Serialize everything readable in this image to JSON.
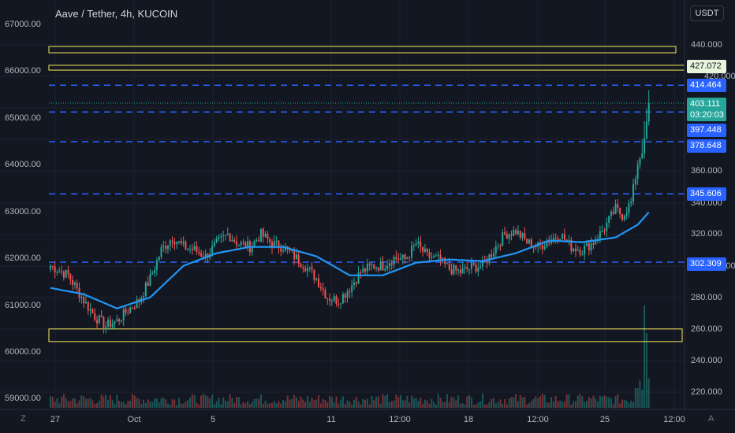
{
  "header": {
    "title": "Aave / Tether, 4h, KUCOIN",
    "currency": "USDT"
  },
  "colors": {
    "background": "#131722",
    "up": "#26a69a",
    "down": "#ef5350",
    "ma_line": "#2196f3",
    "level_line": "#2962ff",
    "zone_line": "#f7e85a"
  },
  "left_axis": {
    "ticks": [
      "67000.00",
      "66000.00",
      "65000.00",
      "64000.00",
      "63000.00",
      "62000.00",
      "61000.00",
      "60000.00",
      "59000.00"
    ]
  },
  "right_axis": {
    "ticks": [
      "440.000",
      "420.000",
      "360.000",
      "340.000",
      "320.000",
      "300.000",
      "280.000",
      "260.000",
      "240.000",
      "220.000"
    ]
  },
  "time_axis": {
    "ticks": [
      "27",
      "Oct",
      "5",
      "11",
      "12:00",
      "18",
      "12:00",
      "25",
      "12:00"
    ]
  },
  "price_tags": {
    "top": "427.072",
    "level_1": "414.464",
    "current": "403.111",
    "countdown": "03:20:03",
    "level_2": "397.448",
    "level_3": "378.648",
    "level_4": "345.606",
    "level_5": "302.309"
  },
  "controls": {
    "zoom_label": "Z",
    "auto_label": "A"
  },
  "chart_data": {
    "type": "candlestick",
    "symbol": "Aave / Tether",
    "interval": "4h",
    "exchange": "KUCOIN",
    "price_axis_unit": "USDT",
    "ylim": [
      210,
      470
    ],
    "horizontal_levels": [
      414.464,
      397.448,
      378.648,
      345.606,
      302.309
    ],
    "zones": [
      {
        "low": 435,
        "high": 439
      },
      {
        "low": 424,
        "high": 427.072
      },
      {
        "low": 252,
        "high": 260
      }
    ],
    "last_price": 403.111,
    "anchors": [
      [
        0,
        300
      ],
      [
        8,
        294
      ],
      [
        15,
        278
      ],
      [
        20,
        268
      ],
      [
        25,
        262
      ],
      [
        30,
        265
      ],
      [
        35,
        272
      ],
      [
        40,
        278
      ],
      [
        45,
        292
      ],
      [
        50,
        310
      ],
      [
        55,
        318
      ],
      [
        60,
        312
      ],
      [
        65,
        310
      ],
      [
        70,
        306
      ],
      [
        75,
        314
      ],
      [
        80,
        320
      ],
      [
        85,
        314
      ],
      [
        90,
        312
      ],
      [
        95,
        320
      ],
      [
        100,
        314
      ],
      [
        105,
        312
      ],
      [
        110,
        306
      ],
      [
        115,
        300
      ],
      [
        120,
        292
      ],
      [
        125,
        280
      ],
      [
        130,
        278
      ],
      [
        135,
        286
      ],
      [
        140,
        296
      ],
      [
        145,
        300
      ],
      [
        150,
        300
      ],
      [
        155,
        305
      ],
      [
        160,
        304
      ],
      [
        165,
        314
      ],
      [
        170,
        306
      ],
      [
        175,
        304
      ],
      [
        180,
        298
      ],
      [
        185,
        296
      ],
      [
        190,
        299
      ],
      [
        195,
        300
      ],
      [
        200,
        310
      ],
      [
        205,
        320
      ],
      [
        210,
        322
      ],
      [
        215,
        315
      ],
      [
        220,
        312
      ],
      [
        225,
        316
      ],
      [
        230,
        320
      ],
      [
        235,
        312
      ],
      [
        240,
        310
      ],
      [
        245,
        315
      ],
      [
        250,
        324
      ],
      [
        255,
        336
      ],
      [
        258,
        332
      ],
      [
        262,
        340
      ],
      [
        265,
        365
      ],
      [
        268,
        378
      ],
      [
        270,
        403
      ]
    ],
    "ma_anchors": [
      [
        0,
        286
      ],
      [
        15,
        282
      ],
      [
        30,
        273
      ],
      [
        45,
        280
      ],
      [
        60,
        300
      ],
      [
        75,
        308
      ],
      [
        90,
        312
      ],
      [
        105,
        312
      ],
      [
        120,
        306
      ],
      [
        135,
        294
      ],
      [
        150,
        294
      ],
      [
        165,
        302
      ],
      [
        180,
        304
      ],
      [
        195,
        303
      ],
      [
        210,
        308
      ],
      [
        225,
        316
      ],
      [
        240,
        315
      ],
      [
        255,
        318
      ],
      [
        265,
        326
      ],
      [
        270,
        334
      ]
    ],
    "candle_count": 271
  }
}
